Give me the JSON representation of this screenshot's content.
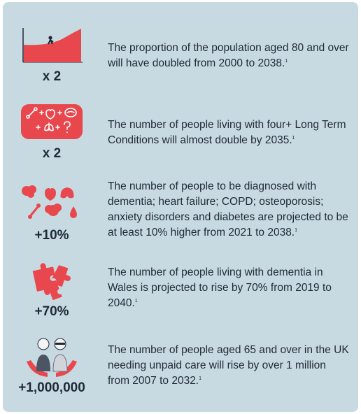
{
  "items": [
    {
      "stat": "x 2",
      "text": "The proportion of the population aged 80 and over will have doubled from 2000 to 2038.",
      "ref": "1"
    },
    {
      "stat": "x 2",
      "text": "The number of people living with four+ Long Term Conditions will almost double by 2035.",
      "ref": "1"
    },
    {
      "stat": "+10%",
      "text": "The number of people to be diagnosed with dementia; heart failure; COPD; osteoporosis; anxiety disorders and diabetes are projected to be at least 10% higher from 2021 to 2038.",
      "ref": "1"
    },
    {
      "stat": "+70%",
      "text": "The number of people living with dementia in Wales is projected to rise by 70% from 2019 to 2040.",
      "ref": "1"
    },
    {
      "stat": "+1,000,000",
      "text": "The number of people aged 65 and over in the UK needing unpaid care will rise by over 1 million from 2007 to 2032.",
      "ref": "1"
    }
  ],
  "colors": {
    "panel": "#c7d9e1",
    "accent": "#e8484d",
    "text": "#1f2a37"
  },
  "icons": [
    "rising-curve-icon",
    "conditions-icon",
    "organs-icon",
    "brain-puzzle-icon",
    "carers-icon"
  ]
}
